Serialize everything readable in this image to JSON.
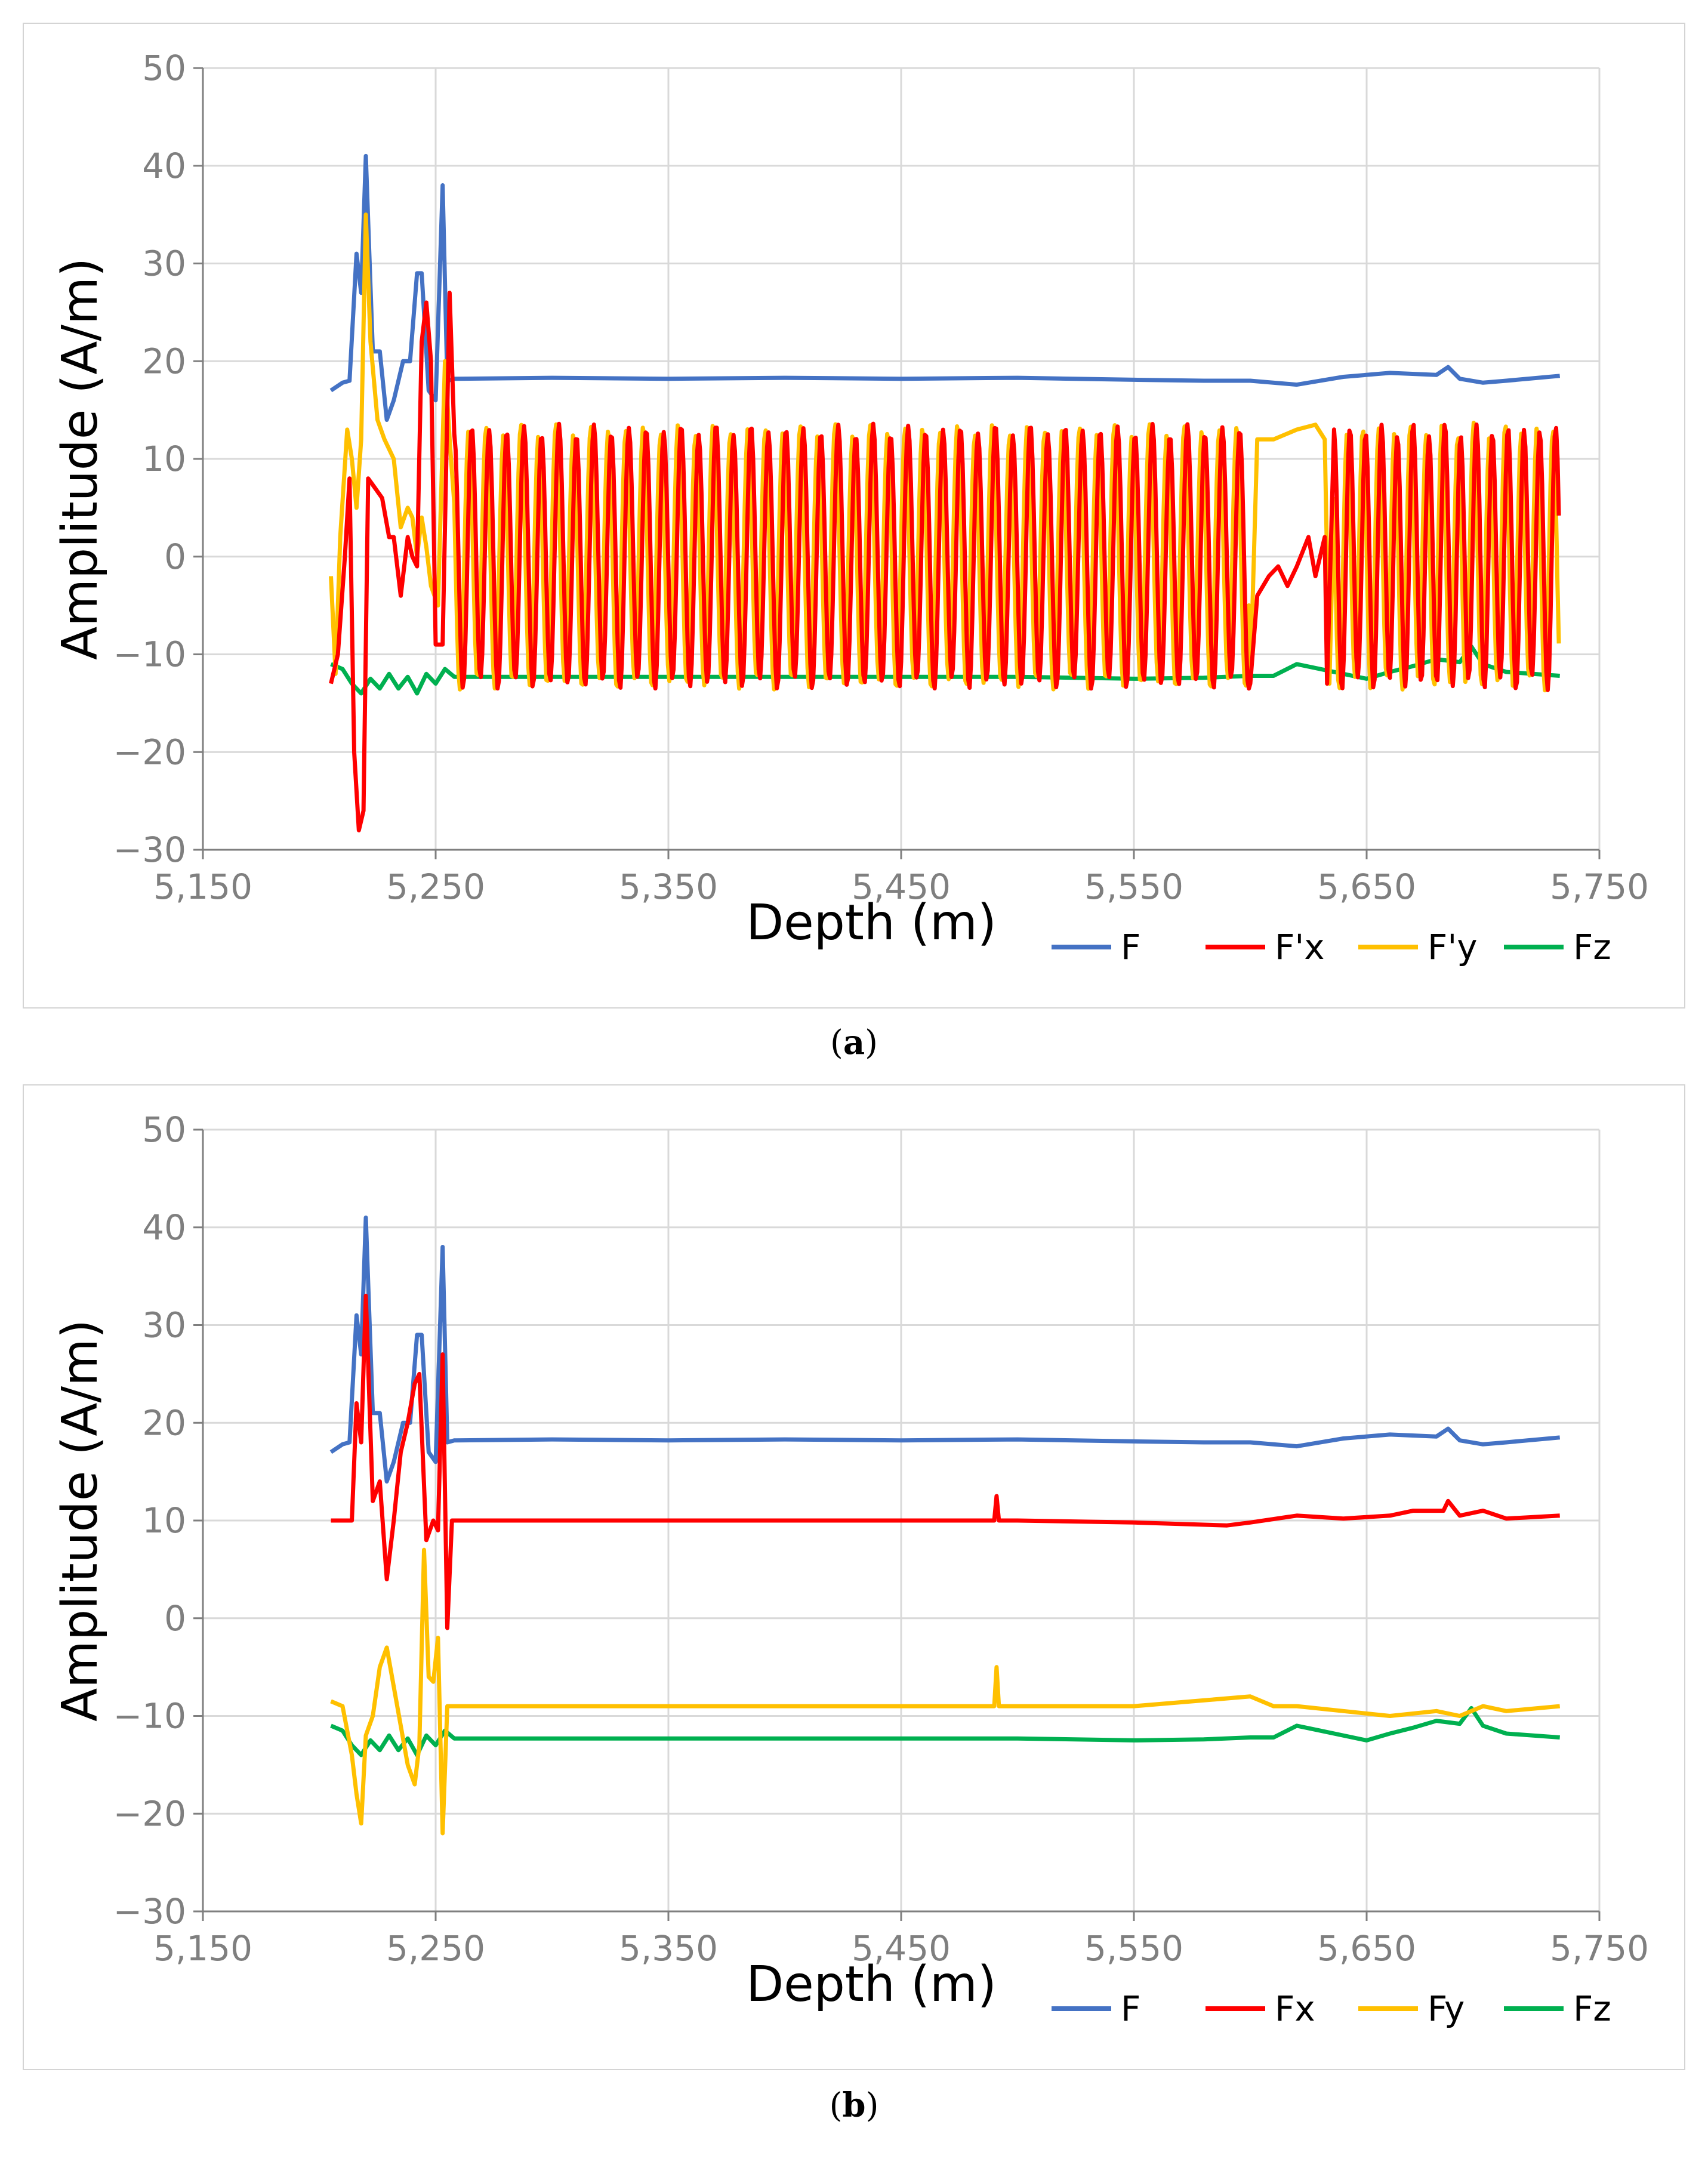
{
  "captions": {
    "a": "a",
    "b": "b"
  },
  "chart_data": [
    {
      "type": "line",
      "panel": "a",
      "title": "",
      "xlabel": "Depth (m)",
      "ylabel": "Amplitude (A/m)",
      "xlim": [
        5150,
        5750
      ],
      "ylim": [
        -30,
        50
      ],
      "xticks": [
        5150,
        5250,
        5350,
        5450,
        5550,
        5650,
        5750
      ],
      "xtick_labels": [
        "5,150",
        "5,250",
        "5,350",
        "5,450",
        "5,550",
        "5,650",
        "5,750"
      ],
      "yticks": [
        -30,
        -20,
        -10,
        0,
        10,
        20,
        30,
        40,
        50
      ],
      "ytick_labels": [
        "−30",
        "−20",
        "−10",
        "0",
        "10",
        "20",
        "30",
        "40",
        "50"
      ],
      "grid": true,
      "legend_position": "bottom-right",
      "series": [
        {
          "name": "F",
          "color": "#4472C4",
          "x": [
            5205,
            5210,
            5213,
            5216,
            5218,
            5220,
            5223,
            5226,
            5229,
            5232,
            5236,
            5239,
            5242,
            5244,
            5247,
            5250,
            5253,
            5255,
            5258,
            5300,
            5350,
            5400,
            5450,
            5500,
            5550,
            5580,
            5600,
            5620,
            5640,
            5660,
            5680,
            5685,
            5690,
            5700,
            5710,
            5733
          ],
          "y": [
            17,
            17.8,
            18,
            31,
            27,
            41,
            21,
            21,
            14,
            16,
            20,
            20,
            29,
            29,
            17,
            16,
            38,
            18,
            18.2,
            18.3,
            18.2,
            18.3,
            18.2,
            18.3,
            18.1,
            18,
            18,
            17.6,
            18.4,
            18.8,
            18.6,
            19.4,
            18.2,
            17.8,
            18,
            18.5
          ]
        },
        {
          "name": "F'x",
          "color": "#FF0000",
          "pattern": "oscillate",
          "amp": 13,
          "period": 7.5,
          "xstart": 5258,
          "xend": 5600,
          "x": [
            5205,
            5208,
            5211,
            5213,
            5215,
            5217,
            5219,
            5221,
            5224,
            5227,
            5230,
            5232,
            5235,
            5238,
            5240,
            5242,
            5244,
            5246,
            5248,
            5250,
            5253,
            5256,
            5258,
            5600,
            5603,
            5608,
            5612,
            5616,
            5620,
            5625,
            5628,
            5632,
            5633
          ],
          "y": [
            -13,
            -10,
            0,
            8,
            -20,
            -28,
            -26,
            8,
            7,
            6,
            2,
            2,
            -4,
            2,
            0,
            -1,
            22,
            26,
            20,
            -9,
            -9,
            27,
            -13,
            -13,
            -4,
            -2,
            -1,
            -3,
            -1,
            2,
            -2,
            2,
            -13
          ]
        },
        {
          "name": "F'y",
          "color": "#FFC000",
          "pattern": "oscillate",
          "amp": 13,
          "period": 7.5,
          "xstart": 5258,
          "xend": 5600,
          "x": [
            5205,
            5207,
            5209,
            5212,
            5214,
            5216,
            5218,
            5220,
            5222,
            5225,
            5228,
            5232,
            5235,
            5238,
            5240,
            5242,
            5244,
            5246,
            5248,
            5251,
            5254,
            5256,
            5258,
            5600,
            5603,
            5610,
            5620,
            5628,
            5632,
            5634
          ],
          "y": [
            -2,
            -12,
            2,
            13,
            10,
            5,
            12,
            35,
            22,
            14,
            12,
            10,
            3,
            5,
            4,
            0,
            4,
            1,
            -3,
            -5,
            20,
            12,
            -13,
            -13,
            12,
            12,
            13,
            13.5,
            12,
            -13
          ]
        },
        {
          "name": "Fz",
          "color": "#00B050",
          "x": [
            5205,
            5210,
            5214,
            5218,
            5222,
            5226,
            5230,
            5234,
            5238,
            5242,
            5246,
            5250,
            5254,
            5258,
            5300,
            5400,
            5500,
            5550,
            5580,
            5600,
            5610,
            5620,
            5630,
            5650,
            5660,
            5670,
            5680,
            5690,
            5695,
            5700,
            5710,
            5733
          ],
          "y": [
            -11,
            -11.5,
            -13,
            -14,
            -12.5,
            -13.5,
            -12,
            -13.5,
            -12.3,
            -14,
            -12,
            -13,
            -11.5,
            -12.3,
            -12.3,
            -12.3,
            -12.3,
            -12.5,
            -12.4,
            -12.2,
            -12.2,
            -11,
            -11.5,
            -12.5,
            -11.8,
            -11.2,
            -10.5,
            -10.8,
            -9.2,
            -11,
            -11.8,
            -12.2
          ]
        }
      ]
    },
    {
      "type": "line",
      "panel": "b",
      "title": "",
      "xlabel": "Depth (m)",
      "ylabel": "Amplitude (A/m)",
      "xlim": [
        5150,
        5750
      ],
      "ylim": [
        -30,
        50
      ],
      "xticks": [
        5150,
        5250,
        5350,
        5450,
        5550,
        5650,
        5750
      ],
      "xtick_labels": [
        "5,150",
        "5,250",
        "5,350",
        "5,450",
        "5,550",
        "5,650",
        "5,750"
      ],
      "yticks": [
        -30,
        -20,
        -10,
        0,
        10,
        20,
        30,
        40,
        50
      ],
      "ytick_labels": [
        "−30",
        "−20",
        "−10",
        "0",
        "10",
        "20",
        "30",
        "40",
        "50"
      ],
      "grid": true,
      "legend_position": "bottom-right",
      "series": [
        {
          "name": "F",
          "color": "#4472C4",
          "x": [
            5205,
            5210,
            5213,
            5216,
            5218,
            5220,
            5223,
            5226,
            5229,
            5232,
            5236,
            5239,
            5242,
            5244,
            5247,
            5250,
            5253,
            5255,
            5258,
            5300,
            5350,
            5400,
            5450,
            5500,
            5550,
            5580,
            5600,
            5620,
            5640,
            5660,
            5680,
            5685,
            5690,
            5700,
            5710,
            5733
          ],
          "y": [
            17,
            17.8,
            18,
            31,
            27,
            41,
            21,
            21,
            14,
            16,
            20,
            20,
            29,
            29,
            17,
            16,
            38,
            18,
            18.2,
            18.3,
            18.2,
            18.3,
            18.2,
            18.3,
            18.1,
            18,
            18,
            17.6,
            18.4,
            18.8,
            18.6,
            19.4,
            18.2,
            17.8,
            18,
            18.5
          ]
        },
        {
          "name": "Fx",
          "color": "#FF0000",
          "x": [
            5205,
            5210,
            5214,
            5216,
            5218,
            5220,
            5223,
            5226,
            5229,
            5232,
            5235,
            5238,
            5241,
            5243,
            5246,
            5249,
            5251,
            5253,
            5255,
            5257,
            5260,
            5300,
            5350,
            5400,
            5450,
            5490,
            5491,
            5492,
            5494,
            5500,
            5550,
            5590,
            5600,
            5620,
            5640,
            5660,
            5670,
            5683,
            5685,
            5690,
            5700,
            5710,
            5733
          ],
          "y": [
            10,
            10,
            10,
            22,
            18,
            33,
            12,
            14,
            4,
            10,
            17,
            20,
            24,
            25,
            8,
            10,
            9,
            27,
            -1,
            10,
            10,
            10,
            10,
            10,
            10,
            10,
            12.5,
            10,
            10,
            10,
            9.8,
            9.5,
            9.8,
            10.5,
            10.2,
            10.5,
            11,
            11,
            12,
            10.5,
            11,
            10.2,
            10.5
          ]
        },
        {
          "name": "Fy",
          "color": "#FFC000",
          "x": [
            5205,
            5210,
            5214,
            5216,
            5218,
            5220,
            5223,
            5226,
            5229,
            5232,
            5235,
            5238,
            5241,
            5243,
            5245,
            5247,
            5249,
            5251,
            5253,
            5255,
            5258,
            5300,
            5350,
            5400,
            5450,
            5490,
            5491,
            5492,
            5494,
            5500,
            5550,
            5600,
            5610,
            5620,
            5640,
            5660,
            5680,
            5690,
            5700,
            5710,
            5733
          ],
          "y": [
            -8.5,
            -9,
            -14,
            -18,
            -21,
            -12,
            -10,
            -5,
            -3,
            -7,
            -11,
            -15,
            -17,
            -13,
            7,
            -6,
            -6.5,
            -2,
            -22,
            -9,
            -9,
            -9,
            -9,
            -9,
            -9,
            -9,
            -5,
            -9,
            -9,
            -9,
            -9,
            -8,
            -9,
            -9,
            -9.5,
            -10,
            -9.5,
            -10,
            -9,
            -9.5,
            -9
          ]
        },
        {
          "name": "Fz",
          "color": "#00B050",
          "x": [
            5205,
            5210,
            5214,
            5218,
            5222,
            5226,
            5230,
            5234,
            5238,
            5242,
            5246,
            5250,
            5254,
            5258,
            5300,
            5400,
            5500,
            5550,
            5580,
            5600,
            5610,
            5620,
            5630,
            5650,
            5660,
            5670,
            5680,
            5690,
            5695,
            5700,
            5710,
            5733
          ],
          "y": [
            -11,
            -11.5,
            -13,
            -14,
            -12.5,
            -13.5,
            -12,
            -13.5,
            -12.3,
            -14,
            -12,
            -13,
            -11.5,
            -12.3,
            -12.3,
            -12.3,
            -12.3,
            -12.5,
            -12.4,
            -12.2,
            -12.2,
            -11,
            -11.5,
            -12.5,
            -11.8,
            -11.2,
            -10.5,
            -10.8,
            -9.2,
            -11,
            -11.8,
            -12.2
          ]
        }
      ]
    }
  ]
}
